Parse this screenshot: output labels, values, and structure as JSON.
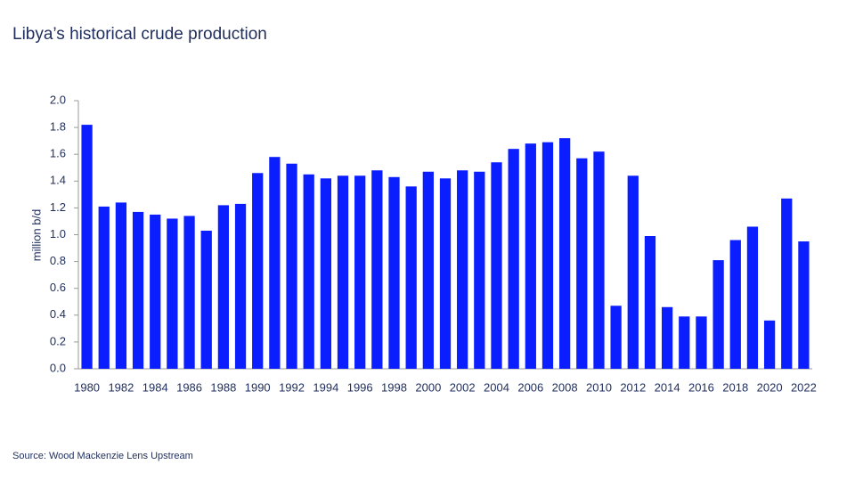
{
  "chart_data": {
    "type": "bar",
    "title": "Libya’s historical crude production",
    "y_label": "million b/d",
    "source": "Source: Wood Mackenzie Lens Upstream",
    "color": "#0a1eff",
    "categories": [
      "1980",
      null,
      "1982",
      null,
      "1984",
      null,
      "1986",
      null,
      "1988",
      null,
      "1990",
      null,
      "1992",
      null,
      "1994",
      null,
      "1996",
      null,
      "1998",
      null,
      "2000",
      null,
      "2002",
      null,
      "2004",
      null,
      "2006",
      null,
      "2008",
      null,
      "2010",
      null,
      "2012",
      null,
      "2014",
      null,
      "2016",
      null,
      "2018",
      null,
      "2020",
      null,
      "2022"
    ],
    "values": [
      1.82,
      1.21,
      1.24,
      1.17,
      1.15,
      1.12,
      1.14,
      1.03,
      1.22,
      1.23,
      1.46,
      1.58,
      1.53,
      1.45,
      1.42,
      1.44,
      1.44,
      1.48,
      1.43,
      1.36,
      1.47,
      1.42,
      1.48,
      1.47,
      1.54,
      1.64,
      1.68,
      1.69,
      1.72,
      1.57,
      1.62,
      0.47,
      1.44,
      0.99,
      0.46,
      0.39,
      0.39,
      0.81,
      0.96,
      1.06,
      0.36,
      1.27,
      0.95
    ],
    "ylim": [
      0,
      2
    ],
    "yticks": [
      {
        "value": 0,
        "label": "0.0"
      },
      0.2,
      0.4,
      0.6,
      0.8,
      {
        "value": 1,
        "label": "1.0"
      },
      1.2,
      1.4,
      1.6,
      1.8,
      {
        "value": 2,
        "label": "2.0"
      }
    ],
    "grid": false
  }
}
